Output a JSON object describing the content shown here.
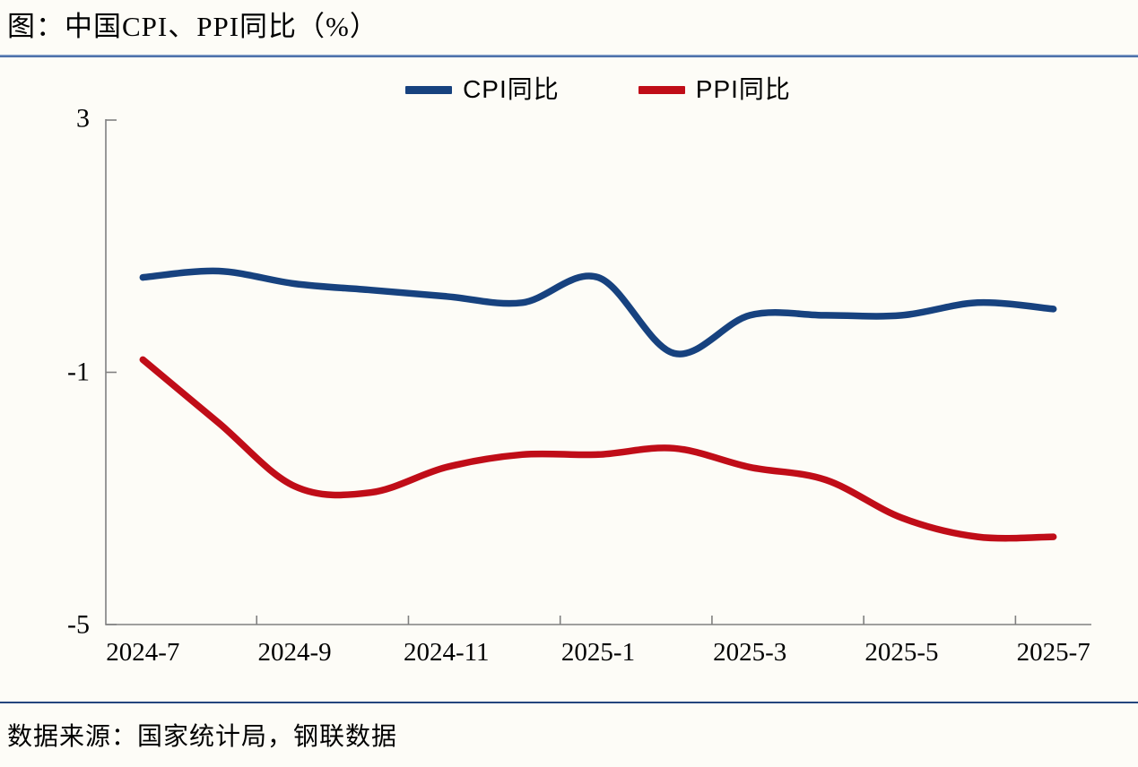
{
  "title": "图：中国CPI、PPI同比（%）",
  "source": "数据来源：国家统计局，钢联数据",
  "colors": {
    "cpi_line": "#17427F",
    "ppi_line": "#C00D18",
    "axis": "#808080",
    "title_rule": "#2F5899",
    "source_rule": "#24457E",
    "background": "#FDFCF7"
  },
  "legend": {
    "items": [
      {
        "label": "CPI同比",
        "color": "#17427F"
      },
      {
        "label": "PPI同比",
        "color": "#C00D18"
      }
    ]
  },
  "chart_data": {
    "type": "line",
    "title": "图：中国CPI、PPI同比（%）",
    "x": [
      "2024-7",
      "2024-8",
      "2024-9",
      "2024-10",
      "2024-11",
      "2024-12",
      "2025-1",
      "2025-2",
      "2025-3",
      "2025-4",
      "2025-5",
      "2025-6",
      "2025-7"
    ],
    "x_tick_labels": [
      "2024-7",
      "2024-9",
      "2024-11",
      "2025-1",
      "2025-3",
      "2025-5",
      "2025-7"
    ],
    "y_tick_labels": [
      "3",
      "-1",
      "-5"
    ],
    "y_ticks": [
      3,
      -1,
      -5
    ],
    "ylim": [
      -5,
      3
    ],
    "xlabel": "",
    "ylabel": "",
    "grid": false,
    "smooth": true,
    "legend_position": "top",
    "series": [
      {
        "name": "CPI同比",
        "color": "#17427F",
        "values": [
          0.5,
          0.6,
          0.4,
          0.3,
          0.2,
          0.1,
          0.5,
          -0.7,
          -0.1,
          -0.1,
          -0.1,
          0.1,
          0.0
        ]
      },
      {
        "name": "PPI同比",
        "color": "#C00D18",
        "values": [
          -0.8,
          -1.8,
          -2.8,
          -2.9,
          -2.5,
          -2.3,
          -2.3,
          -2.2,
          -2.5,
          -2.7,
          -3.3,
          -3.6,
          -3.6
        ]
      }
    ]
  }
}
